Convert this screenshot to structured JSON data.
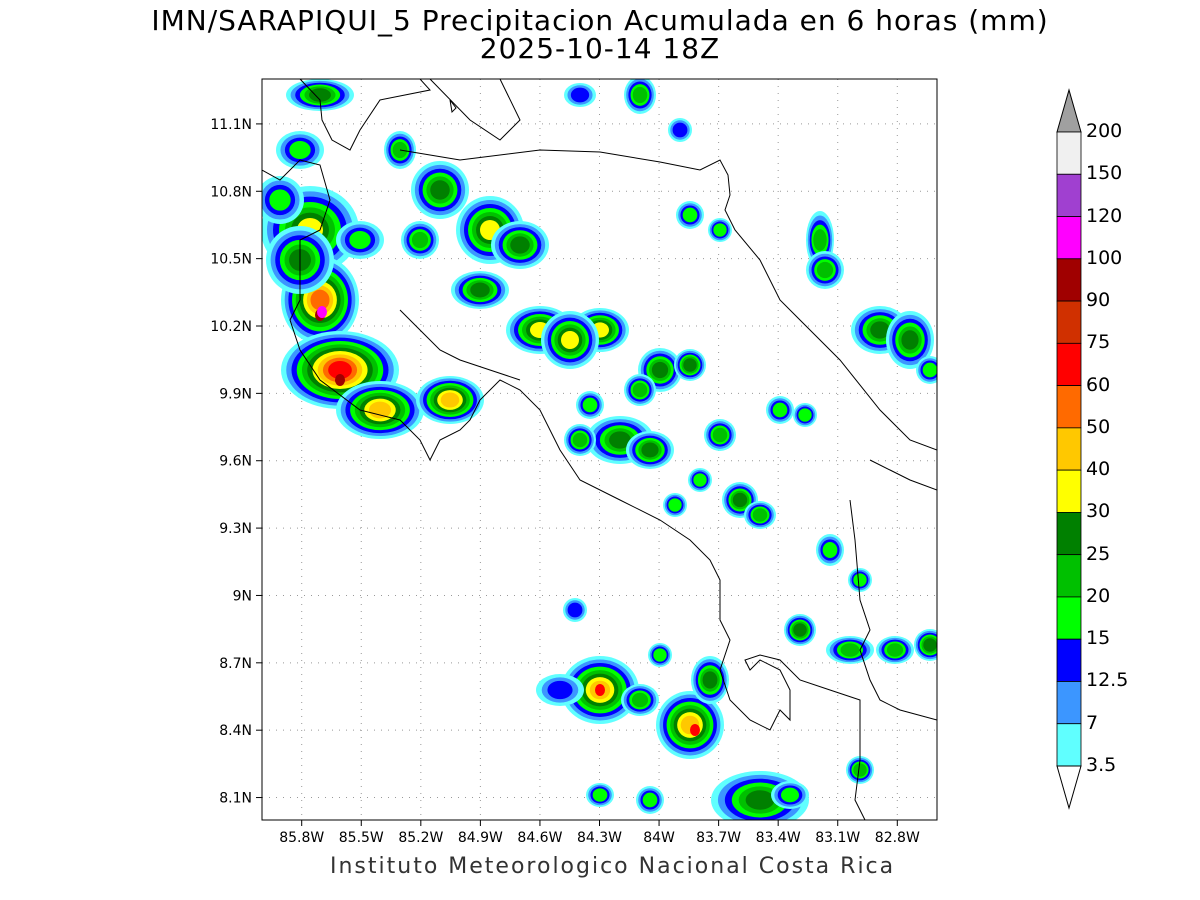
{
  "title": {
    "line1": "IMN/SARAPIQUI_5 Precipitacion Acumulada en 6 horas (mm)",
    "line2": "2025-10-14 18Z"
  },
  "footer": "Instituto Meteorologico Nacional Costa Rica",
  "map": {
    "lon_range": [
      -86.0,
      -82.6
    ],
    "lat_range": [
      8.0,
      11.3
    ],
    "lat_ticks": [
      "11.1N",
      "10.8N",
      "10.5N",
      "10.2N",
      "9.9N",
      "9.6N",
      "9.3N",
      "9N",
      "8.7N",
      "8.4N",
      "8.1N"
    ],
    "lon_ticks": [
      "85.8W",
      "85.5W",
      "85.2W",
      "84.9W",
      "84.6W",
      "84.3W",
      "84W",
      "83.7W",
      "83.4W",
      "83.1W",
      "82.8W"
    ]
  },
  "colorbar": {
    "labels": [
      "200",
      "150",
      "120",
      "100",
      "90",
      "75",
      "60",
      "50",
      "40",
      "30",
      "25",
      "20",
      "15",
      "12.5",
      "7",
      "3.5"
    ],
    "colors": [
      "#a0a0a0",
      "#f0f0f0",
      "#a040d0",
      "#ff00ff",
      "#a00000",
      "#d03000",
      "#ff0000",
      "#ff6a00",
      "#ffc800",
      "#ffff00",
      "#008000",
      "#00c000",
      "#00ff00",
      "#0000ff",
      "#3c96ff",
      "#60ffff"
    ]
  }
}
